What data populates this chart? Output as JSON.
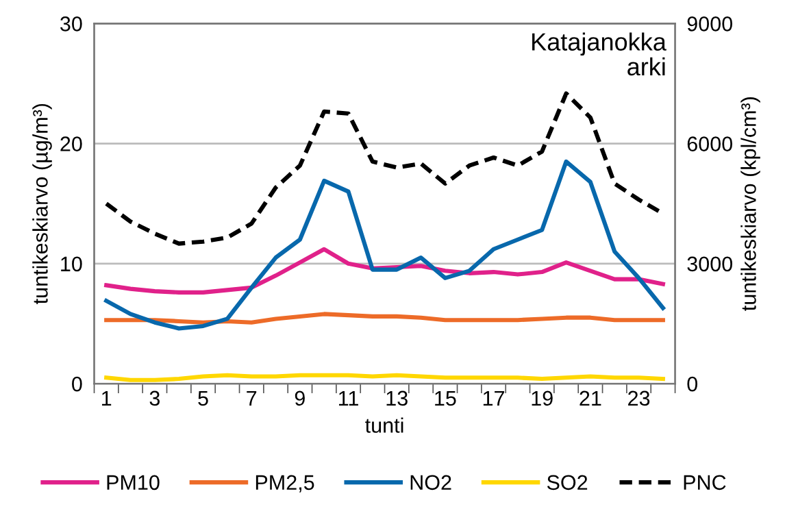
{
  "chart_data": {
    "type": "line",
    "title": "Katajanokka\narki",
    "xlabel": "tunti",
    "ylabel": "tuntikeskiarvo (µg/m³)",
    "y2label": "tuntikeskiarvo (kpl/cm³)",
    "categories": [
      "1",
      null,
      "3",
      null,
      "5",
      null,
      "7",
      null,
      "9",
      null,
      "11",
      null,
      "13",
      null,
      "15",
      null,
      "17",
      null,
      "19",
      null,
      "21",
      null,
      "23",
      null
    ],
    "series": [
      {
        "name": "PM10",
        "color": "#e0218a",
        "values": [
          8.2,
          7.9,
          7.7,
          7.6,
          7.6,
          7.8,
          8.0,
          9.0,
          10.1,
          11.2,
          10.0,
          9.6,
          9.7,
          9.8,
          9.4,
          9.2,
          9.3,
          9.1,
          9.3,
          10.1,
          9.4,
          8.7,
          8.7,
          8.3
        ]
      },
      {
        "name": "PM2,5",
        "color": "#ed6b28",
        "values": [
          5.3,
          5.3,
          5.3,
          5.2,
          5.1,
          5.2,
          5.1,
          5.4,
          5.6,
          5.8,
          5.7,
          5.6,
          5.6,
          5.5,
          5.3,
          5.3,
          5.3,
          5.3,
          5.4,
          5.5,
          5.5,
          5.3,
          5.3,
          5.3
        ]
      },
      {
        "name": "NO2",
        "color": "#0868ac",
        "values": [
          6.9,
          5.8,
          5.1,
          4.6,
          4.8,
          5.4,
          8.0,
          10.5,
          12.0,
          16.9,
          16.0,
          9.5,
          9.5,
          10.5,
          8.8,
          9.4,
          11.2,
          12.0,
          12.8,
          18.5,
          16.8,
          11.0,
          8.8,
          6.3
        ]
      },
      {
        "name": "SO2",
        "color": "#ffd700",
        "values": [
          0.5,
          0.3,
          0.3,
          0.4,
          0.6,
          0.7,
          0.6,
          0.6,
          0.7,
          0.7,
          0.7,
          0.6,
          0.7,
          0.6,
          0.5,
          0.5,
          0.5,
          0.5,
          0.4,
          0.5,
          0.6,
          0.5,
          0.5,
          0.4
        ]
      },
      {
        "name": "PNC",
        "color": "#000000",
        "axis": "y2",
        "line_style": "dashed",
        "values": [
          4500,
          4050,
          3750,
          3500,
          3550,
          3650,
          4000,
          4900,
          5450,
          6800,
          6750,
          5550,
          5400,
          5500,
          5000,
          5450,
          5650,
          5450,
          5800,
          7250,
          6650,
          5000,
          4600,
          4250
        ]
      }
    ],
    "ylim": [
      0,
      30
    ],
    "yticks": [
      0,
      10,
      20,
      30
    ],
    "y2lim": [
      0,
      9000
    ],
    "y2ticks": [
      0,
      3000,
      6000,
      9000
    ],
    "grid": "y",
    "legend": "bottom",
    "marker": "none",
    "line_style": "solid"
  }
}
